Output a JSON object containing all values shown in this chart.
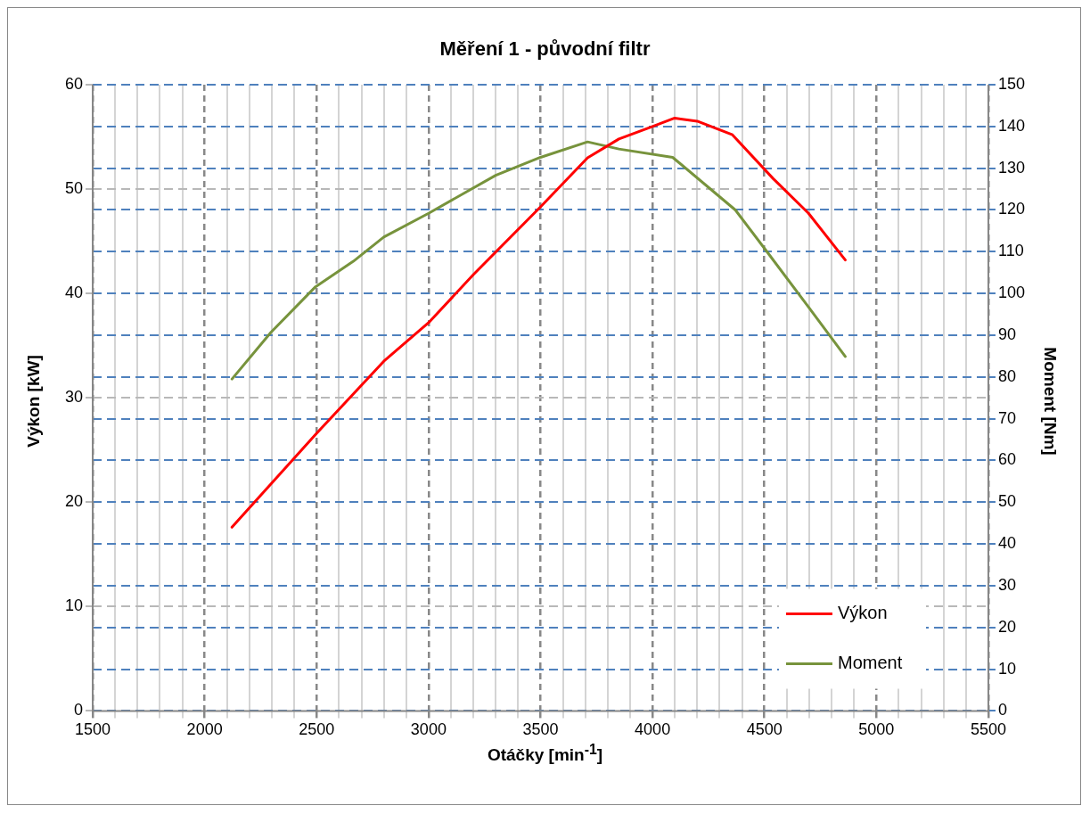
{
  "chart_data": {
    "type": "line",
    "title": "Měření 1 - původní filtr",
    "xlabel": "Otáčky [min$^{-1}$]",
    "ylabel": "Výkon [kW]",
    "y2label": "Moment [Nm]",
    "xlim": [
      1500,
      5500
    ],
    "xticks": [
      1500,
      {
        "value": 1600,
        "label": null
      },
      {
        "value": 1700,
        "label": null
      },
      {
        "value": 1800,
        "label": null
      },
      {
        "value": 1900,
        "label": null
      },
      2000,
      {
        "value": 2100,
        "label": null
      },
      {
        "value": 2200,
        "label": null
      },
      {
        "value": 2300,
        "label": null
      },
      {
        "value": 2400,
        "label": null
      },
      2500,
      {
        "value": 2600,
        "label": null
      },
      {
        "value": 2700,
        "label": null
      },
      {
        "value": 2800,
        "label": null
      },
      {
        "value": 2900,
        "label": null
      },
      3000,
      {
        "value": 3100,
        "label": null
      },
      {
        "value": 3200,
        "label": null
      },
      {
        "value": 3300,
        "label": null
      },
      {
        "value": 3400,
        "label": null
      },
      3500,
      {
        "value": 3600,
        "label": null
      },
      {
        "value": 3700,
        "label": null
      },
      {
        "value": 3800,
        "label": null
      },
      {
        "value": 3900,
        "label": null
      },
      4000,
      {
        "value": 4100,
        "label": null
      },
      {
        "value": 4200,
        "label": null
      },
      {
        "value": 4300,
        "label": null
      },
      {
        "value": 4400,
        "label": null
      },
      4500,
      {
        "value": 4600,
        "label": null
      },
      {
        "value": 4700,
        "label": null
      },
      {
        "value": 4800,
        "label": null
      },
      {
        "value": 4900,
        "label": null
      },
      5000,
      {
        "value": 5100,
        "label": null
      },
      {
        "value": 5200,
        "label": null
      },
      {
        "value": 5300,
        "label": null
      },
      {
        "value": 5400,
        "label": null
      },
      5500
    ],
    "ylim": [
      0,
      60
    ],
    "yticks": [
      0,
      10,
      20,
      30,
      40,
      50,
      60
    ],
    "y2lim": [
      0,
      150
    ],
    "y2ticks": [
      0,
      10,
      20,
      30,
      40,
      50,
      60,
      70,
      80,
      90,
      100,
      110,
      120,
      130,
      140,
      150
    ],
    "grid": true,
    "legend": "bottom right",
    "marker": "none",
    "line_style": "solid",
    "series": [
      {
        "name": "Výkon",
        "color": "#ff0000",
        "x": [
          2122,
          2500,
          2800,
          3000,
          3200,
          3500,
          3710,
          3850,
          4000,
          4099,
          4200,
          4357,
          4539,
          4696,
          4861
        ],
        "values": [
          17.6,
          26.6,
          33.5,
          37.2,
          41.8,
          48.3,
          53.0,
          54.8,
          56.0,
          56.8,
          56.5,
          55.2,
          51.0,
          47.7,
          43.2
        ]
      },
      {
        "name": "Moment",
        "color": "#77933c",
        "axis": "y2",
        "x": [
          2122,
          2296,
          2495,
          2664,
          2800,
          3000,
          3300,
          3500,
          3710,
          3850,
          4090,
          4370,
          4514,
          4696,
          4861
        ],
        "values": [
          79.5,
          90.7,
          101.6,
          107.7,
          113.5,
          119.2,
          128.3,
          132.6,
          136.3,
          134.6,
          132.6,
          120.0,
          109.8,
          96.8,
          84.9
        ]
      }
    ]
  }
}
